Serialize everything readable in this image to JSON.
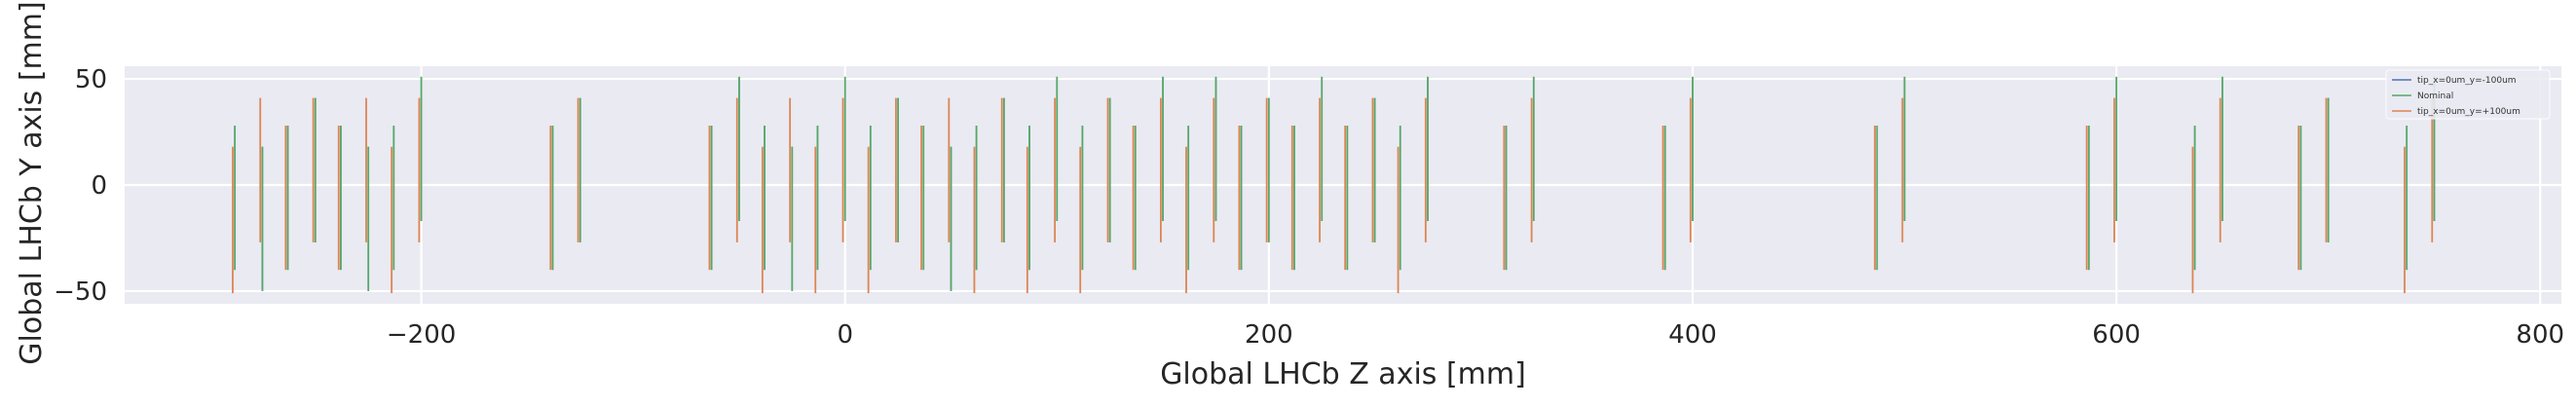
{
  "chart_data": {
    "type": "line",
    "title": "",
    "xlabel": "Global LHCb Z axis [mm]",
    "ylabel": "Global LHCb Y axis [mm]",
    "xlim": [
      -340,
      810
    ],
    "ylim": [
      -56,
      56
    ],
    "xticks": [
      -200,
      0,
      200,
      400,
      600,
      800
    ],
    "xtick_labels": [
      "−200",
      "0",
      "200",
      "400",
      "600",
      "800"
    ],
    "yticks": [
      -50,
      0,
      50
    ],
    "ytick_labels": [
      "−50",
      "0",
      "50"
    ],
    "grid": true,
    "legend_position": "top-right",
    "background": "#eaeaf2",
    "module_z_positions": [
      -288,
      -263,
      -238,
      -213,
      -138,
      -63,
      -38,
      -13,
      12,
      37,
      62,
      87,
      112,
      137,
      162,
      187,
      212,
      237,
      262,
      312,
      387,
      487,
      587,
      637,
      687,
      737
    ],
    "series": [
      {
        "name": "tip_x=0um_y=-100um",
        "color": "#4c72b0",
        "style": "thin",
        "segments": [
          {
            "z": -288,
            "y": [
              -40,
              28
            ]
          },
          {
            "z": -263,
            "y": [
              -40,
              28
            ]
          },
          {
            "z": -238,
            "y": [
              -40,
              28
            ]
          },
          {
            "z": -213,
            "y": [
              -40,
              28
            ]
          },
          {
            "z": -138,
            "y": [
              -40,
              28
            ]
          },
          {
            "z": -63,
            "y": [
              -40,
              28
            ]
          },
          {
            "z": -38,
            "y": [
              -40,
              28
            ]
          },
          {
            "z": -13,
            "y": [
              -40,
              28
            ]
          },
          {
            "z": 12,
            "y": [
              -40,
              28
            ]
          },
          {
            "z": 37,
            "y": [
              -40,
              28
            ]
          },
          {
            "z": 62,
            "y": [
              -40,
              28
            ]
          },
          {
            "z": 87,
            "y": [
              -40,
              28
            ]
          },
          {
            "z": 112,
            "y": [
              -40,
              28
            ]
          },
          {
            "z": 137,
            "y": [
              -40,
              28
            ]
          },
          {
            "z": 162,
            "y": [
              -40,
              28
            ]
          },
          {
            "z": 187,
            "y": [
              -40,
              28
            ]
          },
          {
            "z": 212,
            "y": [
              -40,
              28
            ]
          },
          {
            "z": 237,
            "y": [
              -40,
              28
            ]
          },
          {
            "z": 262,
            "y": [
              -40,
              28
            ]
          },
          {
            "z": 312,
            "y": [
              -40,
              28
            ]
          },
          {
            "z": 387,
            "y": [
              -40,
              28
            ]
          },
          {
            "z": 487,
            "y": [
              -40,
              28
            ]
          },
          {
            "z": 587,
            "y": [
              -40,
              28
            ]
          },
          {
            "z": 637,
            "y": [
              -40,
              28
            ]
          },
          {
            "z": 687,
            "y": [
              -40,
              28
            ]
          },
          {
            "z": 737,
            "y": [
              -40,
              28
            ]
          },
          {
            "z": -275,
            "y": [
              -50,
              18
            ]
          },
          {
            "z": -250,
            "y": [
              -27,
              41
            ]
          },
          {
            "z": -225,
            "y": [
              -50,
              18
            ]
          },
          {
            "z": -200,
            "y": [
              -17,
              51
            ]
          },
          {
            "z": -125,
            "y": [
              -27,
              41
            ]
          },
          {
            "z": -50,
            "y": [
              -17,
              51
            ]
          },
          {
            "z": -25,
            "y": [
              -50,
              18
            ]
          },
          {
            "z": 0,
            "y": [
              -17,
              51
            ]
          },
          {
            "z": 25,
            "y": [
              -27,
              41
            ]
          },
          {
            "z": 50,
            "y": [
              -50,
              18
            ]
          },
          {
            "z": 75,
            "y": [
              -27,
              41
            ]
          },
          {
            "z": 100,
            "y": [
              -17,
              51
            ]
          },
          {
            "z": 125,
            "y": [
              -27,
              41
            ]
          },
          {
            "z": 150,
            "y": [
              -17,
              51
            ]
          },
          {
            "z": 175,
            "y": [
              -17,
              51
            ]
          },
          {
            "z": 200,
            "y": [
              -27,
              41
            ]
          },
          {
            "z": 225,
            "y": [
              -17,
              51
            ]
          },
          {
            "z": 250,
            "y": [
              -27,
              41
            ]
          },
          {
            "z": 275,
            "y": [
              -17,
              51
            ]
          },
          {
            "z": 325,
            "y": [
              -17,
              51
            ]
          },
          {
            "z": 400,
            "y": [
              -17,
              51
            ]
          },
          {
            "z": 500,
            "y": [
              -17,
              51
            ]
          },
          {
            "z": 600,
            "y": [
              -17,
              51
            ]
          },
          {
            "z": 650,
            "y": [
              -17,
              51
            ]
          },
          {
            "z": 700,
            "y": [
              -27,
              41
            ]
          },
          {
            "z": 750,
            "y": [
              -17,
              51
            ]
          }
        ]
      },
      {
        "name": "Nominal",
        "color": "#55a868",
        "style": "normal",
        "segments": [
          {
            "z": -288,
            "y": [
              -40,
              28
            ]
          },
          {
            "z": -263,
            "y": [
              -40,
              28
            ]
          },
          {
            "z": -238,
            "y": [
              -40,
              28
            ]
          },
          {
            "z": -213,
            "y": [
              -40,
              28
            ]
          },
          {
            "z": -138,
            "y": [
              -40,
              28
            ]
          },
          {
            "z": -63,
            "y": [
              -40,
              28
            ]
          },
          {
            "z": -38,
            "y": [
              -40,
              28
            ]
          },
          {
            "z": -13,
            "y": [
              -40,
              28
            ]
          },
          {
            "z": 12,
            "y": [
              -40,
              28
            ]
          },
          {
            "z": 37,
            "y": [
              -40,
              28
            ]
          },
          {
            "z": 62,
            "y": [
              -40,
              28
            ]
          },
          {
            "z": 87,
            "y": [
              -40,
              28
            ]
          },
          {
            "z": 112,
            "y": [
              -40,
              28
            ]
          },
          {
            "z": 137,
            "y": [
              -40,
              28
            ]
          },
          {
            "z": 162,
            "y": [
              -40,
              28
            ]
          },
          {
            "z": 187,
            "y": [
              -40,
              28
            ]
          },
          {
            "z": 212,
            "y": [
              -40,
              28
            ]
          },
          {
            "z": 237,
            "y": [
              -40,
              28
            ]
          },
          {
            "z": 262,
            "y": [
              -40,
              28
            ]
          },
          {
            "z": 312,
            "y": [
              -40,
              28
            ]
          },
          {
            "z": 387,
            "y": [
              -40,
              28
            ]
          },
          {
            "z": 487,
            "y": [
              -40,
              28
            ]
          },
          {
            "z": 587,
            "y": [
              -40,
              28
            ]
          },
          {
            "z": 637,
            "y": [
              -40,
              28
            ]
          },
          {
            "z": 687,
            "y": [
              -40,
              28
            ]
          },
          {
            "z": 737,
            "y": [
              -40,
              28
            ]
          },
          {
            "z": -275,
            "y": [
              -50,
              18
            ]
          },
          {
            "z": -250,
            "y": [
              -27,
              41
            ]
          },
          {
            "z": -225,
            "y": [
              -50,
              18
            ]
          },
          {
            "z": -200,
            "y": [
              -17,
              51
            ]
          },
          {
            "z": -125,
            "y": [
              -27,
              41
            ]
          },
          {
            "z": -50,
            "y": [
              -17,
              51
            ]
          },
          {
            "z": -25,
            "y": [
              -50,
              18
            ]
          },
          {
            "z": 0,
            "y": [
              -17,
              51
            ]
          },
          {
            "z": 25,
            "y": [
              -27,
              41
            ]
          },
          {
            "z": 50,
            "y": [
              -50,
              18
            ]
          },
          {
            "z": 75,
            "y": [
              -27,
              41
            ]
          },
          {
            "z": 100,
            "y": [
              -17,
              51
            ]
          },
          {
            "z": 125,
            "y": [
              -27,
              41
            ]
          },
          {
            "z": 150,
            "y": [
              -17,
              51
            ]
          },
          {
            "z": 175,
            "y": [
              -17,
              51
            ]
          },
          {
            "z": 200,
            "y": [
              -27,
              41
            ]
          },
          {
            "z": 225,
            "y": [
              -17,
              51
            ]
          },
          {
            "z": 250,
            "y": [
              -27,
              41
            ]
          },
          {
            "z": 275,
            "y": [
              -17,
              51
            ]
          },
          {
            "z": 325,
            "y": [
              -17,
              51
            ]
          },
          {
            "z": 400,
            "y": [
              -17,
              51
            ]
          },
          {
            "z": 500,
            "y": [
              -17,
              51
            ]
          },
          {
            "z": 600,
            "y": [
              -17,
              51
            ]
          },
          {
            "z": 650,
            "y": [
              -17,
              51
            ]
          },
          {
            "z": 700,
            "y": [
              -27,
              41
            ]
          },
          {
            "z": 750,
            "y": [
              -17,
              51
            ]
          }
        ]
      },
      {
        "name": "tip_x=0um_y=+100um",
        "color": "#dd8452",
        "style": "normal",
        "segments": [
          {
            "z": -289,
            "y": [
              -51,
              18
            ]
          },
          {
            "z": -264,
            "y": [
              -40,
              28
            ]
          },
          {
            "z": -239,
            "y": [
              -40,
              28
            ]
          },
          {
            "z": -214,
            "y": [
              -51,
              18
            ]
          },
          {
            "z": -139,
            "y": [
              -40,
              28
            ]
          },
          {
            "z": -64,
            "y": [
              -40,
              28
            ]
          },
          {
            "z": -39,
            "y": [
              -51,
              18
            ]
          },
          {
            "z": -14,
            "y": [
              -51,
              18
            ]
          },
          {
            "z": 11,
            "y": [
              -51,
              18
            ]
          },
          {
            "z": 36,
            "y": [
              -40,
              28
            ]
          },
          {
            "z": 61,
            "y": [
              -51,
              18
            ]
          },
          {
            "z": 86,
            "y": [
              -51,
              18
            ]
          },
          {
            "z": 111,
            "y": [
              -51,
              18
            ]
          },
          {
            "z": 136,
            "y": [
              -40,
              28
            ]
          },
          {
            "z": 161,
            "y": [
              -51,
              18
            ]
          },
          {
            "z": 186,
            "y": [
              -40,
              28
            ]
          },
          {
            "z": 211,
            "y": [
              -40,
              28
            ]
          },
          {
            "z": 236,
            "y": [
              -40,
              28
            ]
          },
          {
            "z": 261,
            "y": [
              -51,
              18
            ]
          },
          {
            "z": 311,
            "y": [
              -40,
              28
            ]
          },
          {
            "z": 386,
            "y": [
              -40,
              28
            ]
          },
          {
            "z": 486,
            "y": [
              -40,
              28
            ]
          },
          {
            "z": 586,
            "y": [
              -40,
              28
            ]
          },
          {
            "z": 636,
            "y": [
              -51,
              18
            ]
          },
          {
            "z": 686,
            "y": [
              -40,
              28
            ]
          },
          {
            "z": 736,
            "y": [
              -51,
              18
            ]
          },
          {
            "z": -276,
            "y": [
              -27,
              41
            ]
          },
          {
            "z": -251,
            "y": [
              -27,
              41
            ]
          },
          {
            "z": -226,
            "y": [
              -27,
              41
            ]
          },
          {
            "z": -201,
            "y": [
              -27,
              41
            ]
          },
          {
            "z": -126,
            "y": [
              -27,
              41
            ]
          },
          {
            "z": -51,
            "y": [
              -27,
              41
            ]
          },
          {
            "z": -26,
            "y": [
              -27,
              41
            ]
          },
          {
            "z": -1,
            "y": [
              -27,
              41
            ]
          },
          {
            "z": 24,
            "y": [
              -27,
              41
            ]
          },
          {
            "z": 49,
            "y": [
              -27,
              41
            ]
          },
          {
            "z": 74,
            "y": [
              -27,
              41
            ]
          },
          {
            "z": 99,
            "y": [
              -27,
              41
            ]
          },
          {
            "z": 124,
            "y": [
              -27,
              41
            ]
          },
          {
            "z": 149,
            "y": [
              -27,
              41
            ]
          },
          {
            "z": 174,
            "y": [
              -27,
              41
            ]
          },
          {
            "z": 199,
            "y": [
              -27,
              41
            ]
          },
          {
            "z": 224,
            "y": [
              -27,
              41
            ]
          },
          {
            "z": 249,
            "y": [
              -27,
              41
            ]
          },
          {
            "z": 274,
            "y": [
              -27,
              41
            ]
          },
          {
            "z": 324,
            "y": [
              -27,
              41
            ]
          },
          {
            "z": 399,
            "y": [
              -27,
              41
            ]
          },
          {
            "z": 499,
            "y": [
              -27,
              41
            ]
          },
          {
            "z": 599,
            "y": [
              -27,
              41
            ]
          },
          {
            "z": 649,
            "y": [
              -27,
              41
            ]
          },
          {
            "z": 699,
            "y": [
              -27,
              41
            ]
          },
          {
            "z": 749,
            "y": [
              -27,
              41
            ]
          }
        ]
      }
    ]
  }
}
